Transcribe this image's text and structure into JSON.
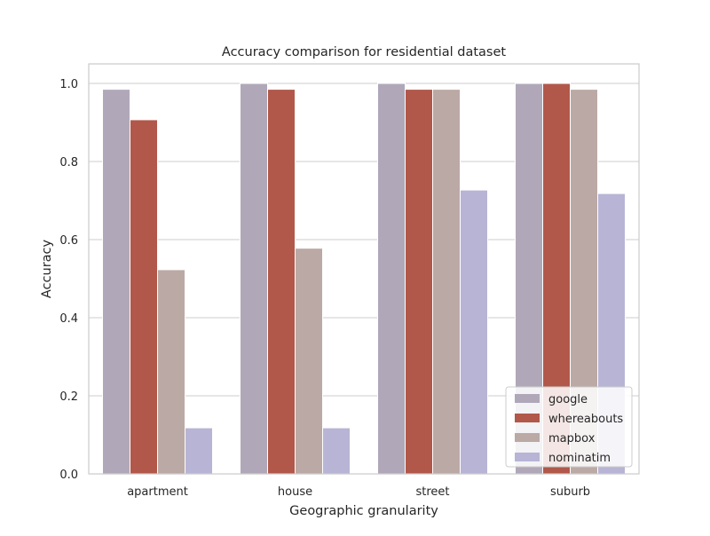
{
  "chart_data": {
    "type": "bar",
    "title": "Accuracy comparison for residential dataset",
    "xlabel": "Geographic granularity",
    "ylabel": "Accuracy",
    "categories": [
      "apartment",
      "house",
      "street",
      "suburb"
    ],
    "ylim": [
      0,
      1.05
    ],
    "yticks": [
      0.0,
      0.2,
      0.4,
      0.6,
      0.8,
      1.0
    ],
    "ytick_labels": [
      "0.0",
      "0.2",
      "0.4",
      "0.6",
      "0.8",
      "1.0"
    ],
    "grid": true,
    "legend_position": "bottom-right",
    "series": [
      {
        "name": "google",
        "color": "#b0a8b9",
        "values": [
          0.985,
          1.0,
          1.0,
          1.0
        ]
      },
      {
        "name": "whereabouts",
        "color": "#b1584a",
        "values": [
          0.907,
          0.985,
          0.985,
          1.0
        ]
      },
      {
        "name": "mapbox",
        "color": "#bba9a5",
        "values": [
          0.523,
          0.578,
          0.985,
          0.985
        ]
      },
      {
        "name": "nominatim",
        "color": "#b8b4d5",
        "values": [
          0.118,
          0.118,
          0.727,
          0.718
        ]
      }
    ]
  }
}
